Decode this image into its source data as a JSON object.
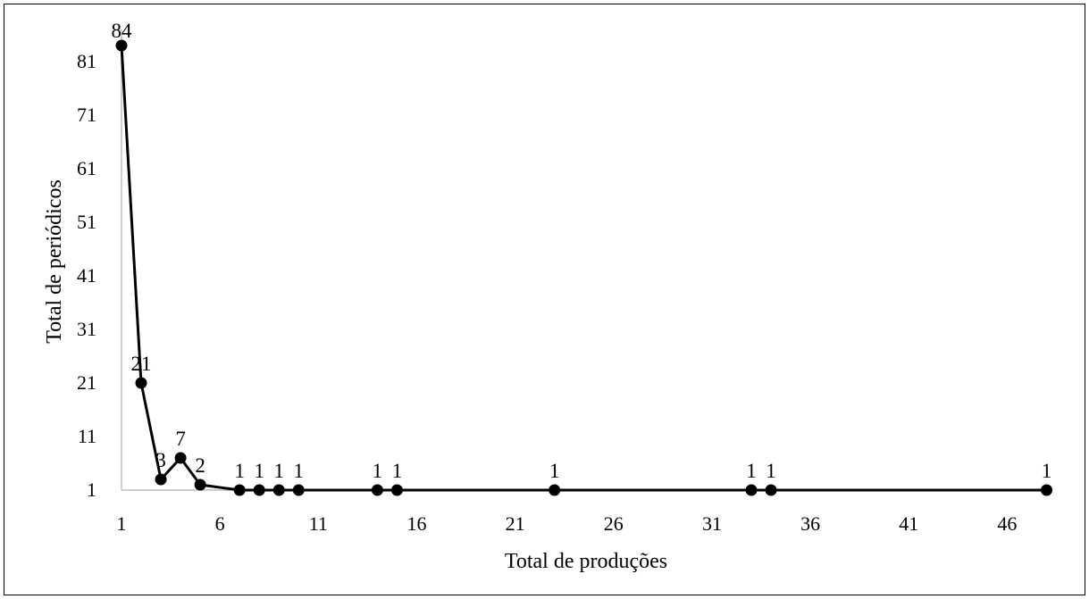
{
  "chart_data": {
    "type": "line",
    "title": "",
    "xlabel": "Total de produções",
    "ylabel": "Total de periódicos",
    "xlim": [
      1,
      48
    ],
    "ylim": [
      1,
      86
    ],
    "x_ticks": [
      "1",
      "6",
      "11",
      "16",
      "21",
      "26",
      "31",
      "36",
      "41",
      "46"
    ],
    "y_ticks": [
      "1",
      "11",
      "21",
      "31",
      "41",
      "51",
      "61",
      "71",
      "81"
    ],
    "grid": false,
    "legend": "none",
    "series": [
      {
        "x": [
          1,
          2,
          3,
          4,
          5,
          7,
          8,
          9,
          10,
          14,
          15,
          23,
          33,
          34,
          48
        ],
        "y": [
          84,
          21,
          3,
          7,
          2,
          1,
          1,
          1,
          1,
          1,
          1,
          1,
          1,
          1,
          1
        ],
        "labels": [
          "84",
          "21",
          "3",
          "7",
          "2",
          "1",
          "1",
          "1",
          "1",
          "1",
          "1",
          "1",
          "1",
          "1",
          "1"
        ]
      }
    ],
    "colors": {
      "line": "#000000",
      "marker": "#000000",
      "axis": "#bfbfbf"
    }
  }
}
